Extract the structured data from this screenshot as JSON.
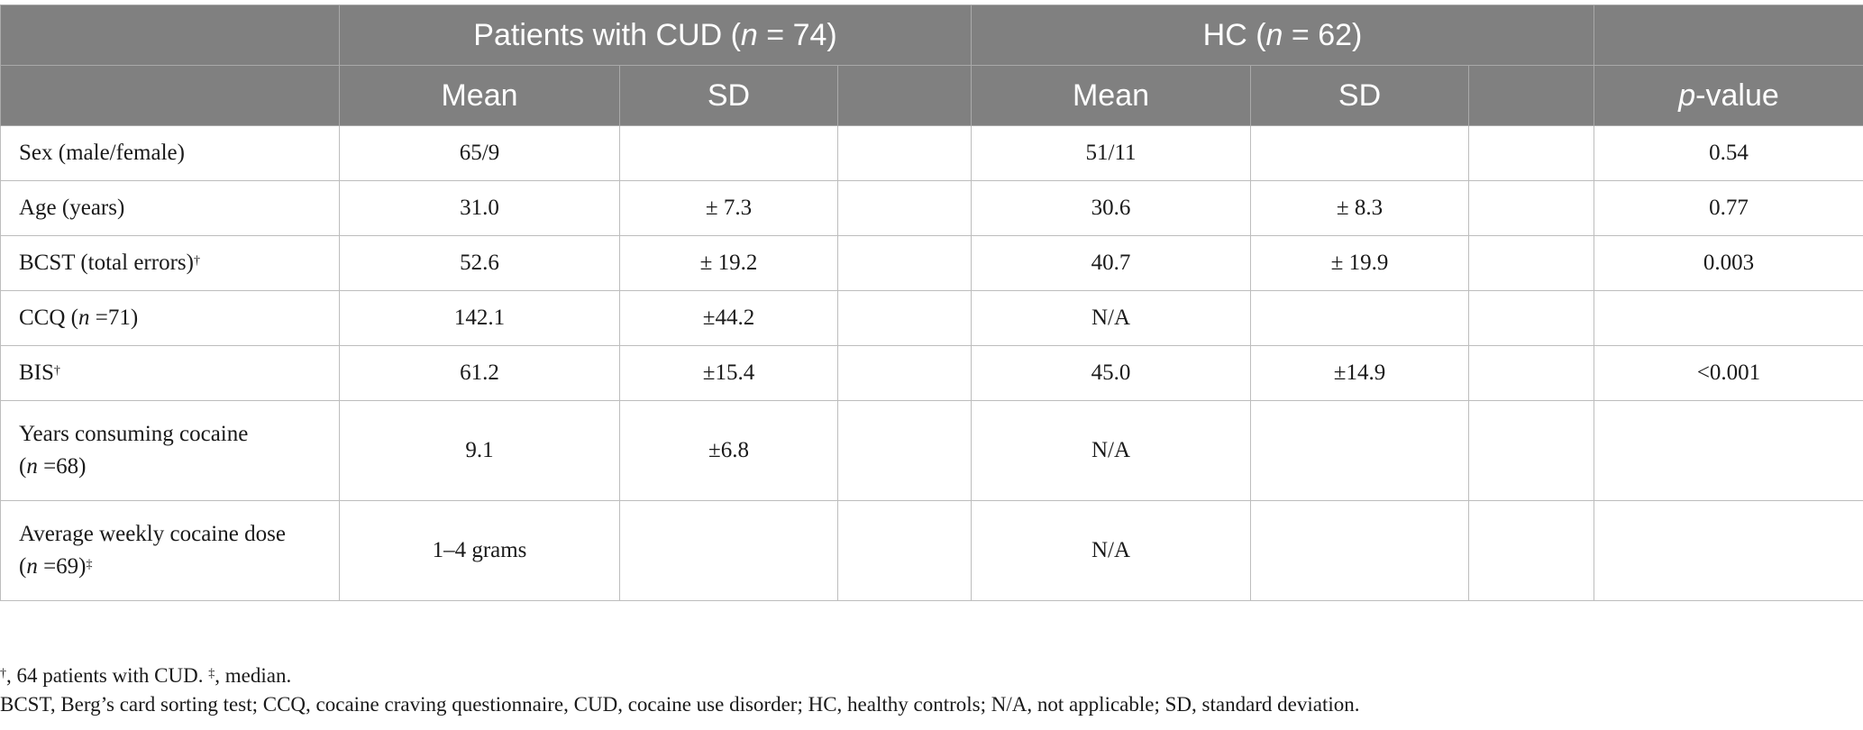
{
  "header": {
    "group1_label": "Patients with CUD (",
    "group1_n_symbol": "n",
    "group1_n": " = 74)",
    "group2_label": "HC (",
    "group2_n_symbol": "n",
    "group2_n": " = 62)",
    "mean1": "Mean",
    "sd1": "SD",
    "mean2": "Mean",
    "sd2": "SD",
    "p_symbol": "p",
    "p_suffix": "-value"
  },
  "rows": [
    {
      "label": "Sex (male/female)",
      "mean1": "65/9",
      "sd1": "",
      "mean2": "51/11",
      "sd2": "",
      "p": "0.54"
    },
    {
      "label": "Age (years)",
      "mean1": "31.0",
      "sd1": "± 7.3",
      "mean2": "30.6",
      "sd2": "± 8.3",
      "p": "0.77"
    },
    {
      "label": "BCST (total errors)",
      "label_sup": "†",
      "mean1": "52.6",
      "sd1": "± 19.2",
      "mean2": "40.7",
      "sd2": "± 19.9",
      "p": "0.003"
    },
    {
      "label_pre": "CCQ (",
      "label_n": "n",
      "label_post": " =71)",
      "mean1": "142.1",
      "sd1": "±44.2",
      "mean2": "N/A",
      "sd2": "",
      "p": ""
    },
    {
      "label": "BIS",
      "label_sup": "†",
      "mean1": "61.2",
      "sd1": "±15.4",
      "mean2": "45.0",
      "sd2": "±14.9",
      "p": "<0.001"
    },
    {
      "label_line1": "Years consuming cocaine",
      "label_pre": "(",
      "label_n": "n",
      "label_post": " =68)",
      "mean1": "9.1",
      "sd1": "±6.8",
      "mean2": "N/A",
      "sd2": "",
      "p": ""
    },
    {
      "label_line1": "Average weekly cocaine dose",
      "label_pre": "(",
      "label_n": "n",
      "label_post": " =69)",
      "label_sup": "‡",
      "mean1": "1–4 grams",
      "sd1": "",
      "mean2": "N/A",
      "sd2": "",
      "p": ""
    }
  ],
  "footnotes": {
    "note1_sup1": "†",
    "note1_text1": ", 64 patients with CUD. ",
    "note1_sup2": "‡",
    "note1_text2": ", median.",
    "note2": "BCST, Berg’s card sorting test; CCQ, cocaine craving questionnaire, CUD, cocaine use disorder; HC, healthy controls; N/A, not applicable; SD, standard deviation."
  }
}
